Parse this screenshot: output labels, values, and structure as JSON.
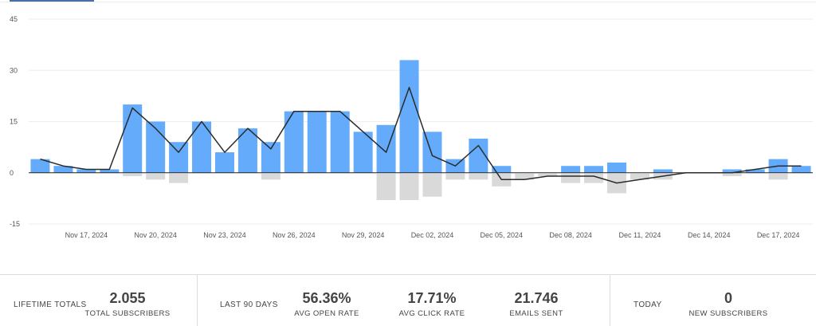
{
  "chart_data": {
    "type": "bar",
    "bar_color": "#64acfb",
    "negative_bar_color": "#d9d9d9",
    "line_color": "#2b2b2b",
    "grid": true,
    "ylim": [
      -15,
      45
    ],
    "y_ticks": [
      "45",
      "30",
      "15",
      "0",
      "-15"
    ],
    "y_tick_values": [
      45,
      30,
      15,
      0,
      -15
    ],
    "x_tick_labels": [
      "Nov 17, 2024",
      "Nov 20, 2024",
      "Nov 23, 2024",
      "Nov 26, 2024",
      "Nov 29, 2024",
      "Dec 02, 2024",
      "Dec 05, 2024",
      "Dec 08, 2024",
      "Dec 11, 2024",
      "Dec 14, 2024",
      "Dec 17, 2024"
    ],
    "x_tick_index": [
      2,
      5,
      8,
      11,
      14,
      17,
      20,
      23,
      26,
      29,
      32
    ],
    "series": [
      {
        "values": [
          4,
          2,
          1,
          1,
          20,
          15,
          9,
          15,
          6,
          13,
          9,
          18,
          18,
          18,
          12,
          14,
          33,
          12,
          4,
          10,
          2,
          0,
          0,
          2,
          2,
          3,
          0,
          1,
          0,
          0,
          1,
          1,
          4,
          2
        ]
      },
      {
        "values": [
          0,
          0,
          0,
          0,
          -1,
          -2,
          -3,
          0,
          0,
          0,
          -2,
          0,
          0,
          0,
          0,
          -8,
          -8,
          -7,
          -2,
          -2,
          -4,
          -2,
          -1,
          -3,
          -3,
          -6,
          -2,
          -2,
          0,
          0,
          -1,
          0,
          -2,
          0
        ]
      },
      {
        "values": [
          4,
          2,
          1,
          1,
          19,
          13,
          6,
          15,
          6,
          13,
          7,
          18,
          18,
          18,
          12,
          6,
          25,
          5,
          2,
          8,
          -2,
          -2,
          -1,
          -1,
          -1,
          -3,
          -2,
          -1,
          0,
          0,
          0,
          1,
          2,
          2
        ]
      }
    ]
  },
  "stats": {
    "lifetime": {
      "label": "LIFETIME TOTALS",
      "total_subscribers": {
        "value": "2.055",
        "label": "TOTAL SUBSCRIBERS"
      }
    },
    "last90": {
      "label": "LAST 90 DAYS",
      "open_rate": {
        "value": "56.36%",
        "label": "AVG OPEN RATE"
      },
      "click_rate": {
        "value": "17.71%",
        "label": "AVG CLICK RATE"
      },
      "emails_sent": {
        "value": "21.746",
        "label": "EMAILS SENT"
      }
    },
    "today": {
      "label": "TODAY",
      "new_subscribers": {
        "value": "0",
        "label": "NEW SUBSCRIBERS"
      }
    }
  }
}
